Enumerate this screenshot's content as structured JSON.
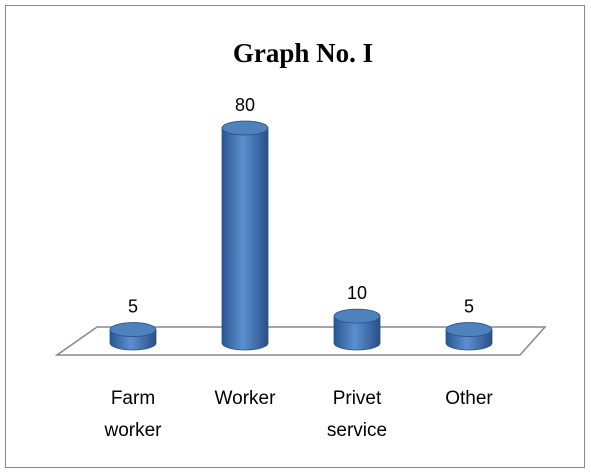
{
  "chart_data": {
    "type": "bar",
    "title": "Graph No. I",
    "categories": [
      "Farm worker",
      "Worker",
      "Privet service",
      "Other"
    ],
    "values": [
      5,
      80,
      10,
      5
    ],
    "color": "#4f81bd"
  }
}
